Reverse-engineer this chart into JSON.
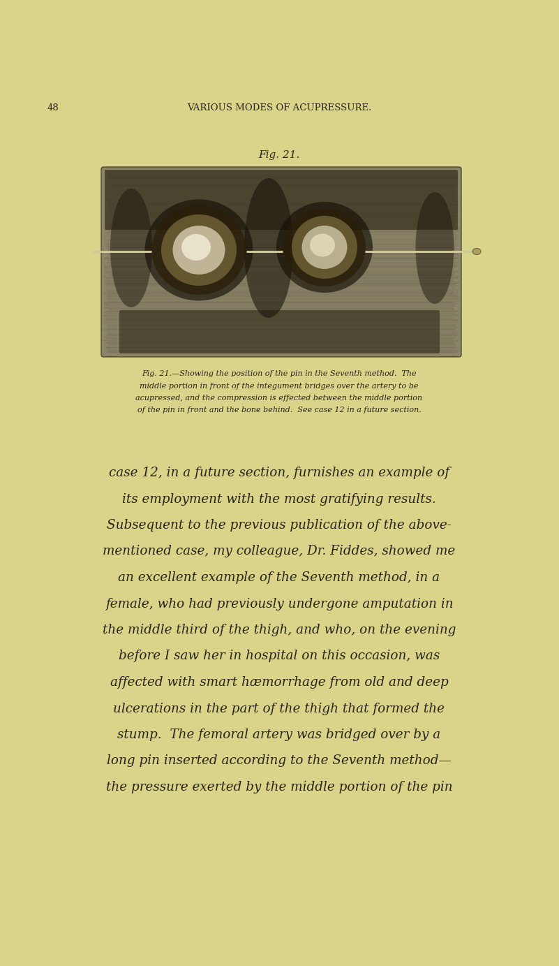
{
  "background_color": "#d9d48a",
  "header_number": "48",
  "header_title": "VARIOUS MODES OF ACUPRESSURE.",
  "fig_title": "Fig. 21.",
  "caption_lines": [
    "Fig. 21.—Showing the position of the pin in the Seventh method.  The",
    "middle portion in front of the integument bridges over the artery to be",
    "acupressed, and the compression is effected between the middle portion",
    "of the pin in front and the bone behind.  See case 12 in a future section."
  ],
  "body_lines": [
    "case 12, in a future section, furnishes an example of",
    "its employment with the most gratifying results.",
    "Subsequent to the previous publication of the above-",
    "mentioned case, my colleague, Dr. Fiddes, showed me",
    "an excellent example of the Seventh method, in a",
    "female, who had previously undergone amputation in",
    "the middle third of the thigh, and who, on the evening",
    "before I saw her in hospital on this occasion, was",
    "affected with smart hæmorrhage from old and deep",
    "ulcerations in the part of the thigh that formed the",
    "stump.  The femoral artery was bridged over by a",
    "long pin inserted according to the Seventh method—",
    "the pressure exerted by the middle portion of the pin"
  ],
  "text_color": "#2a2418",
  "caption_color": "#2a2418",
  "fig_title_color": "#2a2418",
  "header_color": "#2a2418"
}
